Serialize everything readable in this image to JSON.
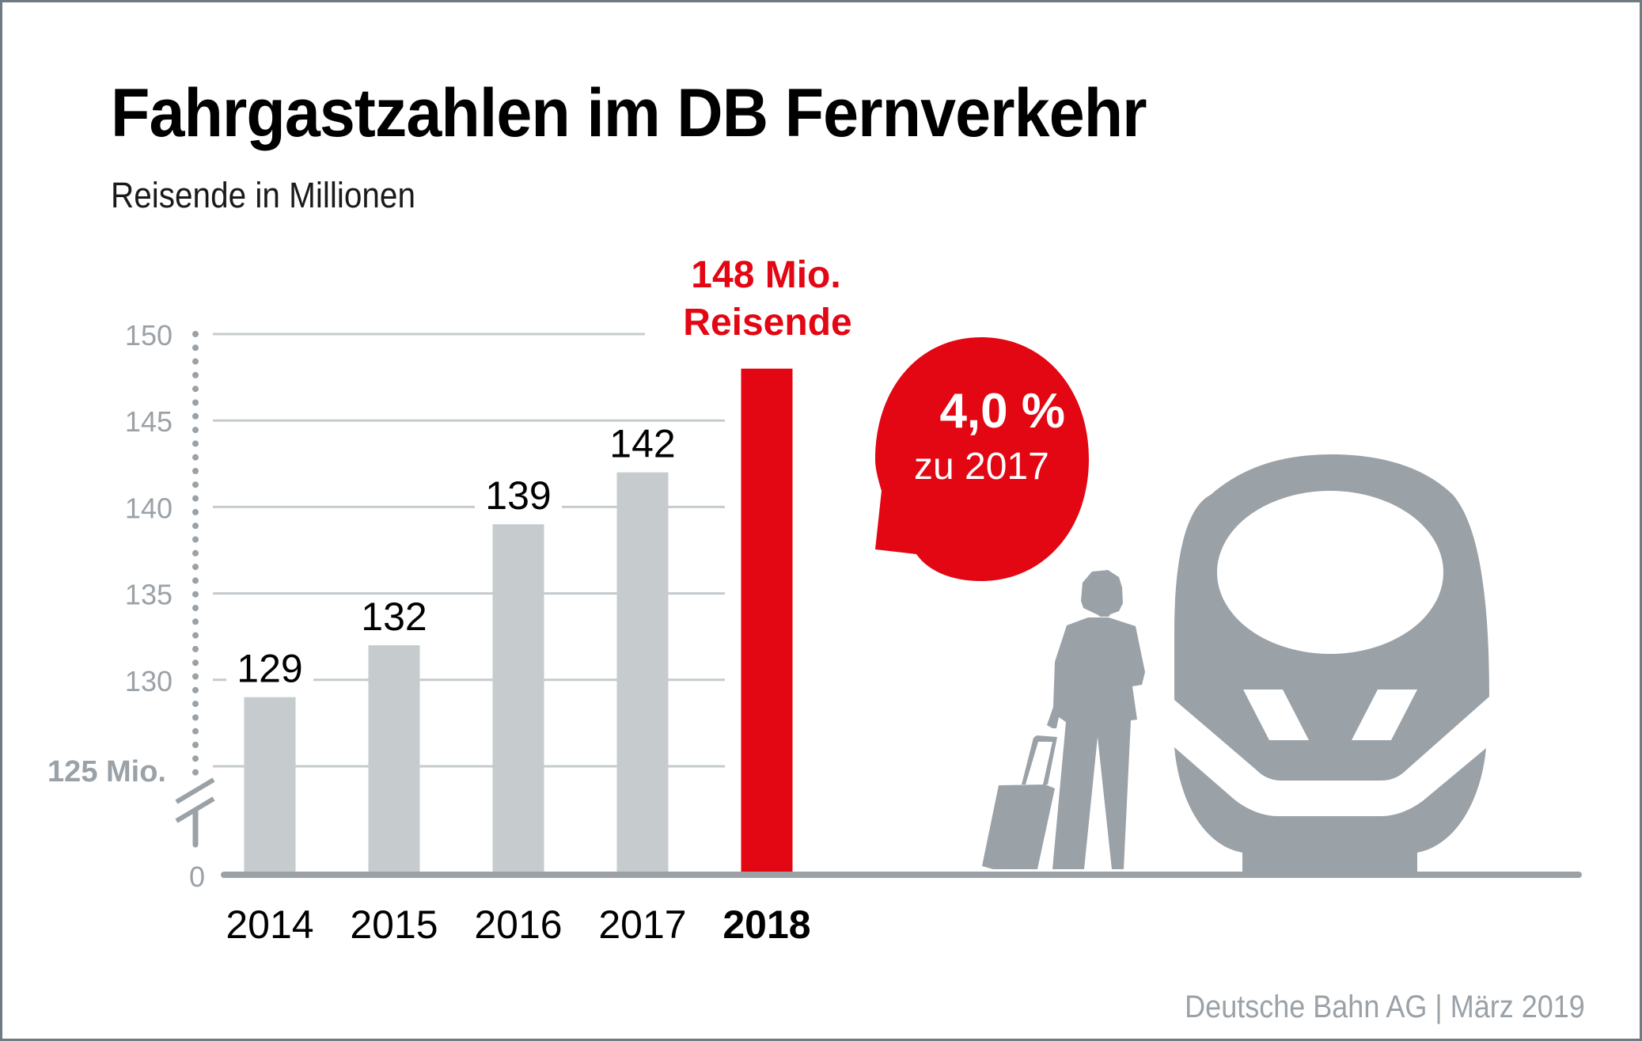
{
  "header": {
    "title": "Fahrgastzahlen im DB Fernverkehr",
    "subtitle": "Reisende in Millionen"
  },
  "footer": {
    "source": "Deutsche Bahn AG | März 2019"
  },
  "colors": {
    "bar": "#c6cbce",
    "highlight": "#e30613",
    "axis": "#9aa1a7",
    "grid": "#c6cbce",
    "text": "#000000",
    "border": "#6e7b82"
  },
  "chart_data": {
    "type": "bar",
    "title": "Fahrgastzahlen im DB Fernverkehr",
    "subtitle": "Reisende in Millionen",
    "xlabel": "",
    "ylabel": "Reisende in Millionen",
    "categories": [
      "2014",
      "2015",
      "2016",
      "2017",
      "2018"
    ],
    "values": [
      129,
      132,
      139,
      142,
      148
    ],
    "data_labels": [
      "129",
      "132",
      "139",
      "142",
      ""
    ],
    "highlight_index": 4,
    "ylim": [
      125,
      150
    ],
    "axis_break": true,
    "yticks": [
      130,
      135,
      140,
      145,
      150
    ],
    "ytick_labels": [
      "130",
      "135",
      "140",
      "145",
      "150"
    ],
    "ybreak_label": "125 Mio.",
    "ybase_label": "0",
    "grid": true,
    "legend": "none",
    "annotations": {
      "highlight_label_line1": "148 Mio.",
      "highlight_label_line2": "Reisende",
      "bubble_value": "4,0 %",
      "bubble_caption": "zu 2017"
    }
  }
}
